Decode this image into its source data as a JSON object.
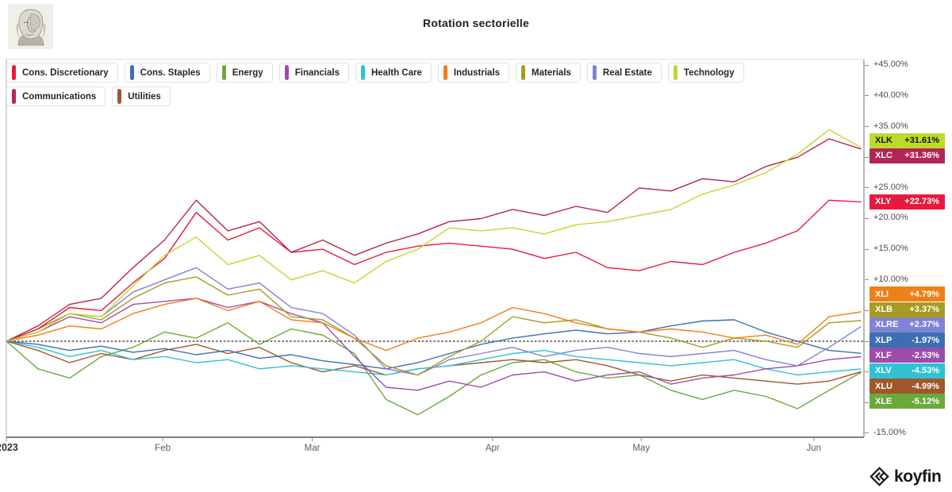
{
  "header": {
    "title": "Rotation sectorielle"
  },
  "legend": {
    "items": [
      {
        "label": "Cons. Discretionary",
        "color": "#e8193c"
      },
      {
        "label": "Cons. Staples",
        "color": "#3c6fb1"
      },
      {
        "label": "Energy",
        "color": "#6aaa3a"
      },
      {
        "label": "Financials",
        "color": "#9e4bac"
      },
      {
        "label": "Health Care",
        "color": "#2fc2d4"
      },
      {
        "label": "Industrials",
        "color": "#ef7f17"
      },
      {
        "label": "Materials",
        "color": "#a89b23"
      },
      {
        "label": "Real Estate",
        "color": "#7f82d6"
      },
      {
        "label": "Technology",
        "color": "#bfd92a"
      },
      {
        "label": "Communications",
        "color": "#b32556"
      },
      {
        "label": "Utilities",
        "color": "#a0572b"
      }
    ]
  },
  "chart_data": {
    "type": "line",
    "title": "Rotation sectorielle",
    "xlabel": "",
    "ylabel": "",
    "ylim": [
      -15,
      45
    ],
    "y_tick_step": 5,
    "grid": false,
    "zero_line_dotted": true,
    "legend_position": "top-left",
    "x_ticks": [
      {
        "label": "2023",
        "t": 0.0,
        "strong": true
      },
      {
        "label": "Feb",
        "t": 0.183
      },
      {
        "label": "Mar",
        "t": 0.358
      },
      {
        "label": "Apr",
        "t": 0.569
      },
      {
        "label": "May",
        "t": 0.743
      },
      {
        "label": "Jun",
        "t": 0.945
      }
    ],
    "series": [
      {
        "ticker": "XLK",
        "name": "Technology",
        "color": "#bfd92a",
        "badge_text_color": "#151500",
        "last_value": 31.61,
        "last_label": "+31.61%",
        "values": [
          0,
          1.5,
          4.5,
          4,
          9,
          14,
          17,
          12.5,
          14,
          10,
          11.5,
          9.5,
          13,
          15,
          18.5,
          18,
          18.5,
          17.5,
          19,
          19.5,
          20.5,
          21.5,
          24,
          25.5,
          27.5,
          30.5,
          34.5,
          31.61
        ]
      },
      {
        "ticker": "XLC",
        "name": "Communications",
        "color": "#b32556",
        "badge_text_color": "#ffffff",
        "last_value": 31.36,
        "last_label": "+31.36%",
        "values": [
          0,
          2.5,
          6,
          7,
          12,
          16.5,
          23,
          18,
          19.5,
          14.5,
          16.5,
          14,
          16,
          17.5,
          19.5,
          20,
          21.5,
          20.5,
          22,
          21,
          25,
          24.5,
          26.5,
          26,
          28.5,
          30,
          33,
          31.36
        ]
      },
      {
        "ticker": "XLY",
        "name": "Cons. Discretionary",
        "color": "#e8193c",
        "badge_text_color": "#ffffff",
        "last_value": 22.73,
        "last_label": "+22.73%",
        "values": [
          0,
          2,
          5.5,
          5,
          9.5,
          13.5,
          21,
          16.5,
          18.5,
          14.5,
          15,
          12.5,
          14.5,
          15.5,
          16,
          15.5,
          15,
          13.5,
          14.5,
          12,
          11.5,
          13,
          12.5,
          14.5,
          16,
          18,
          23,
          22.73
        ]
      },
      {
        "ticker": "XLI",
        "name": "Industrials",
        "color": "#ef7f17",
        "badge_text_color": "#ffffff",
        "last_value": 4.79,
        "last_label": "+4.79%",
        "values": [
          0,
          1,
          2.5,
          2,
          4.5,
          6,
          7,
          5,
          6.5,
          3.5,
          3,
          0.5,
          -1.5,
          0.5,
          1.5,
          3,
          5.5,
          4.5,
          3,
          2,
          1.5,
          2,
          1.5,
          0.5,
          1,
          -0.5,
          4,
          4.79
        ]
      },
      {
        "ticker": "XLB",
        "name": "Materials",
        "color": "#a89b23",
        "badge_text_color": "#ffffff",
        "last_value": 3.37,
        "last_label": "+3.37%",
        "values": [
          0,
          2,
          4.5,
          3.5,
          7,
          9.5,
          10.5,
          7.5,
          8.5,
          4,
          3.5,
          0.5,
          -4,
          -5.5,
          -2.5,
          0,
          4,
          3,
          3.5,
          2,
          1.5,
          0.5,
          -1,
          0.5,
          0,
          -1,
          3,
          3.37
        ]
      },
      {
        "ticker": "XLRE",
        "name": "Real Estate",
        "color": "#7f82d6",
        "badge_text_color": "#ffffff",
        "last_value": 2.37,
        "last_label": "+2.37%",
        "values": [
          0,
          2,
          4.5,
          4,
          8,
          10,
          12,
          8.5,
          9.5,
          5.5,
          4.5,
          1,
          -4.5,
          -5.5,
          -3,
          -2,
          -1,
          -2.5,
          -1.5,
          -1,
          -2,
          -2.5,
          -2,
          -1.5,
          -3,
          -4,
          -1,
          2.37
        ]
      },
      {
        "ticker": "XLP",
        "name": "Cons. Staples",
        "color": "#3c6fb1",
        "badge_text_color": "#ffffff",
        "last_value": -1.97,
        "last_label": "-1.97%",
        "values": [
          0,
          -0.5,
          -1.5,
          -0.8,
          -1.8,
          -1.2,
          -2.2,
          -1.5,
          -2.8,
          -2.2,
          -3.2,
          -3.8,
          -4.5,
          -3.5,
          -2,
          -0.5,
          0.5,
          1.2,
          1.8,
          1.2,
          1.5,
          2.5,
          3.3,
          3.5,
          1.5,
          0,
          -1.5,
          -1.97
        ]
      },
      {
        "ticker": "XLF",
        "name": "Financials",
        "color": "#9e4bac",
        "badge_text_color": "#ffffff",
        "last_value": -2.53,
        "last_label": "-2.53%",
        "values": [
          0,
          1.5,
          4,
          3,
          6,
          6.5,
          7,
          5.5,
          6.5,
          4.5,
          3,
          -2.5,
          -7.5,
          -8,
          -6.5,
          -7.5,
          -5.5,
          -5,
          -6.5,
          -5.5,
          -5,
          -7,
          -6,
          -5.5,
          -4.5,
          -4,
          -3,
          -2.53
        ]
      },
      {
        "ticker": "XLV",
        "name": "Health Care",
        "color": "#2fc2d4",
        "badge_text_color": "#ffffff",
        "last_value": -4.53,
        "last_label": "-4.53%",
        "values": [
          0,
          -1,
          -2.5,
          -1.5,
          -3,
          -2.5,
          -3.5,
          -3,
          -4.5,
          -4,
          -4.5,
          -5,
          -5.5,
          -4.5,
          -4,
          -3,
          -2,
          -1.5,
          -2.5,
          -3,
          -3.5,
          -4,
          -3.5,
          -3,
          -4.5,
          -5.5,
          -5,
          -4.53
        ]
      },
      {
        "ticker": "XLU",
        "name": "Utilities",
        "color": "#a0572b",
        "badge_text_color": "#ffffff",
        "last_value": -4.99,
        "last_label": "-4.99%",
        "values": [
          0,
          -1.5,
          -3.5,
          -2,
          -3,
          -1.5,
          -0.5,
          -2,
          -1,
          -3.5,
          -5,
          -4,
          -5.5,
          -4.5,
          -4,
          -3.5,
          -3,
          -3.5,
          -3,
          -4,
          -5.5,
          -6.5,
          -5.5,
          -6,
          -6.5,
          -7,
          -6.5,
          -4.99
        ]
      },
      {
        "ticker": "XLE",
        "name": "Energy",
        "color": "#6aaa3a",
        "badge_text_color": "#ffffff",
        "last_value": -5.12,
        "last_label": "-5.12%",
        "values": [
          0,
          -4.5,
          -6,
          -2.5,
          -1,
          1.5,
          0.5,
          3,
          -0.5,
          2,
          1,
          -2,
          -9.5,
          -12,
          -9,
          -5.5,
          -3.5,
          -3,
          -5,
          -6,
          -5.5,
          -8,
          -9.5,
          -8,
          -9,
          -11,
          -8,
          -5.12
        ]
      }
    ]
  },
  "footer": {
    "logo_text": "koyfin"
  }
}
